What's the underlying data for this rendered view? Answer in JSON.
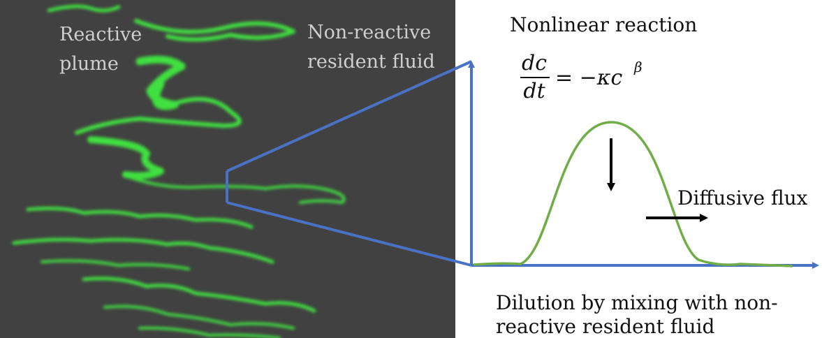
{
  "plume_panel": {
    "left_label": [
      "Reactive",
      "plume"
    ],
    "right_label": [
      "Non-reactive",
      "resident fluid"
    ]
  },
  "reaction": {
    "title": "Nonlinear reaction",
    "equation": {
      "numerator": "dc",
      "denominator": "dt",
      "rhs": "= −κc",
      "exponent": "β"
    }
  },
  "flux_label": "Diffusive flux",
  "caption": [
    "Dilution by mixing with non-",
    "reactive resident fluid"
  ]
}
